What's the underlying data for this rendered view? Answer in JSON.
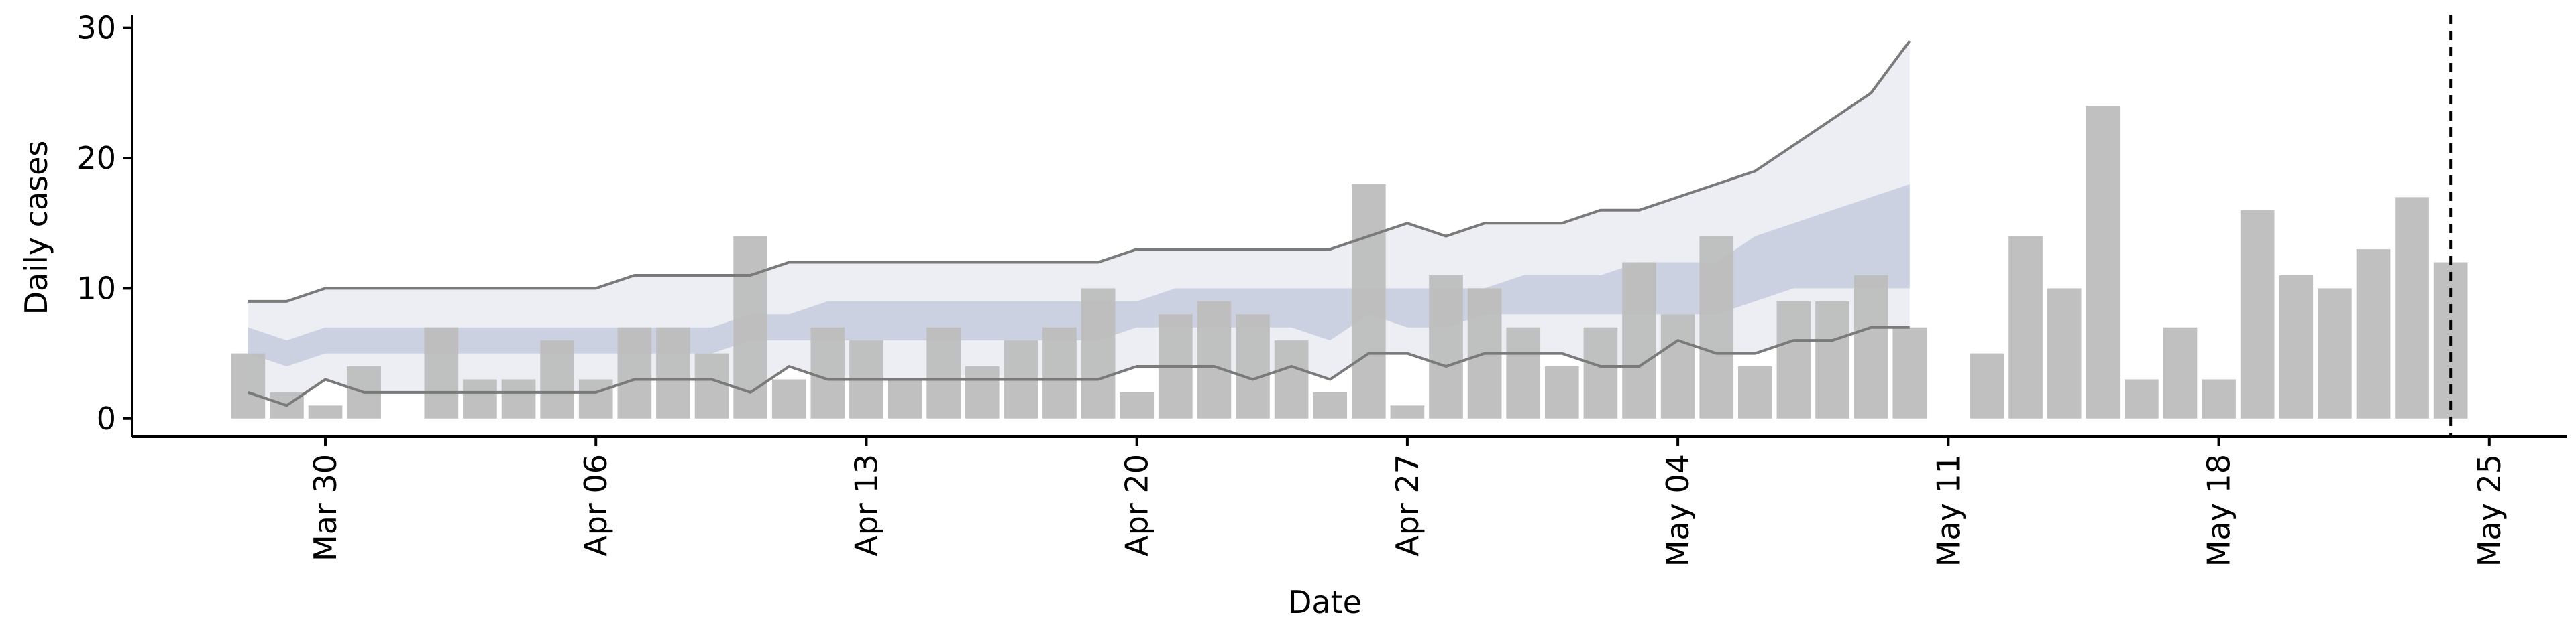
{
  "chart_data": {
    "type": "bar",
    "xlabel": "Date",
    "ylabel": "Daily cases",
    "x": [
      "Mar 28",
      "Mar 29",
      "Mar 30",
      "Mar 31",
      "Apr 01",
      "Apr 02",
      "Apr 03",
      "Apr 04",
      "Apr 05",
      "Apr 06",
      "Apr 07",
      "Apr 08",
      "Apr 09",
      "Apr 10",
      "Apr 11",
      "Apr 12",
      "Apr 13",
      "Apr 14",
      "Apr 15",
      "Apr 16",
      "Apr 17",
      "Apr 18",
      "Apr 19",
      "Apr 20",
      "Apr 21",
      "Apr 22",
      "Apr 23",
      "Apr 24",
      "Apr 25",
      "Apr 26",
      "Apr 27",
      "Apr 28",
      "Apr 29",
      "Apr 30",
      "May 01",
      "May 02",
      "May 03",
      "May 04",
      "May 05",
      "May 06",
      "May 07",
      "May 08",
      "May 09",
      "May 10",
      "May 11",
      "May 12",
      "May 13",
      "May 14",
      "May 15",
      "May 16",
      "May 17",
      "May 18",
      "May 19",
      "May 20",
      "May 21",
      "May 22",
      "May 23",
      "May 24"
    ],
    "xlim": [
      "Mar 25",
      "May 27"
    ],
    "xticks": [
      "Mar 30",
      "Apr 06",
      "Apr 13",
      "Apr 20",
      "Apr 27",
      "May 04",
      "May 11",
      "May 18",
      "May 25"
    ],
    "ylim": [
      -1.4,
      30.6
    ],
    "yticks": [
      0,
      10,
      20,
      30
    ],
    "vline": "May 24",
    "series": [
      {
        "color": "#bdbdbd",
        "values": [
          5,
          2,
          1,
          4,
          0,
          7,
          3,
          3,
          6,
          3,
          7,
          7,
          5,
          14,
          3,
          7,
          6,
          3,
          7,
          4,
          6,
          7,
          10,
          2,
          8,
          9,
          8,
          6,
          2,
          18,
          1,
          11,
          10,
          7,
          4,
          7,
          12,
          8,
          14,
          4,
          9,
          9,
          11,
          7,
          0,
          5,
          14,
          10,
          24,
          3,
          7,
          3,
          16,
          11,
          10,
          13,
          17,
          12
        ]
      }
    ],
    "bands": [
      {
        "color": "#eceef4",
        "line_color": "#7a7a7a",
        "upper": [
          9,
          9,
          10,
          10,
          10,
          10,
          10,
          10,
          10,
          10,
          11,
          11,
          11,
          11,
          12,
          12,
          12,
          12,
          12,
          12,
          12,
          12,
          12,
          13,
          13,
          13,
          13,
          13,
          13,
          14,
          15,
          14,
          15,
          15,
          15,
          16,
          16,
          17,
          18,
          19,
          21,
          23,
          25,
          29,
          null,
          null,
          null,
          null,
          null,
          null,
          null,
          null,
          null,
          null,
          null,
          null,
          null,
          null
        ],
        "lower": [
          2,
          1,
          3,
          2,
          2,
          2,
          2,
          2,
          2,
          2,
          3,
          3,
          3,
          2,
          4,
          3,
          3,
          3,
          3,
          3,
          3,
          3,
          3,
          4,
          4,
          4,
          3,
          4,
          3,
          5,
          5,
          4,
          5,
          5,
          5,
          4,
          4,
          6,
          5,
          5,
          6,
          6,
          7,
          7,
          null,
          null,
          null,
          null,
          null,
          null,
          null,
          null,
          null,
          null,
          null,
          null,
          null,
          null
        ]
      },
      {
        "color": "#c3c9db",
        "upper": [
          7,
          6,
          7,
          7,
          7,
          7,
          7,
          7,
          7,
          7,
          7,
          7,
          7,
          8,
          8,
          9,
          9,
          9,
          9,
          9,
          9,
          9,
          9,
          9,
          10,
          10,
          10,
          10,
          10,
          10,
          10,
          10,
          10,
          11,
          11,
          11,
          12,
          12,
          12,
          14,
          15,
          16,
          17,
          18,
          null,
          null,
          null,
          null,
          null,
          null,
          null,
          null,
          null,
          null,
          null,
          null,
          null,
          null
        ],
        "lower": [
          5,
          4,
          5,
          5,
          5,
          5,
          5,
          5,
          5,
          5,
          5,
          5,
          5,
          6,
          6,
          6,
          6,
          6,
          6,
          6,
          6,
          6,
          6,
          7,
          7,
          7,
          7,
          7,
          6,
          8,
          7,
          7,
          8,
          8,
          8,
          8,
          8,
          8,
          8,
          9,
          10,
          10,
          10,
          10,
          null,
          null,
          null,
          null,
          null,
          null,
          null,
          null,
          null,
          null,
          null,
          null,
          null,
          null
        ]
      }
    ]
  }
}
